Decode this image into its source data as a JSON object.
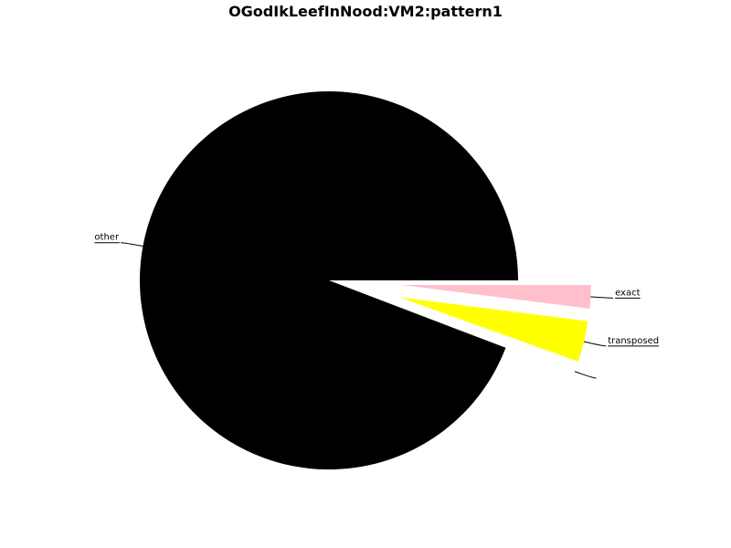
{
  "chart_data": {
    "type": "pie",
    "title": "OGodIkLeefInNood:VM2:pattern1",
    "slices": [
      {
        "label": "exact",
        "value": 2.0,
        "color": "#ffc0cb"
      },
      {
        "label": "transposed",
        "value": 3.5,
        "color": "#ffff00"
      },
      {
        "label": "",
        "value": 0.3,
        "color": "#ffffff"
      },
      {
        "label": "other",
        "value": 94.2,
        "color": "#000000"
      }
    ],
    "start_angle_deg": 0,
    "direction": "clockwise",
    "legend": "none"
  }
}
